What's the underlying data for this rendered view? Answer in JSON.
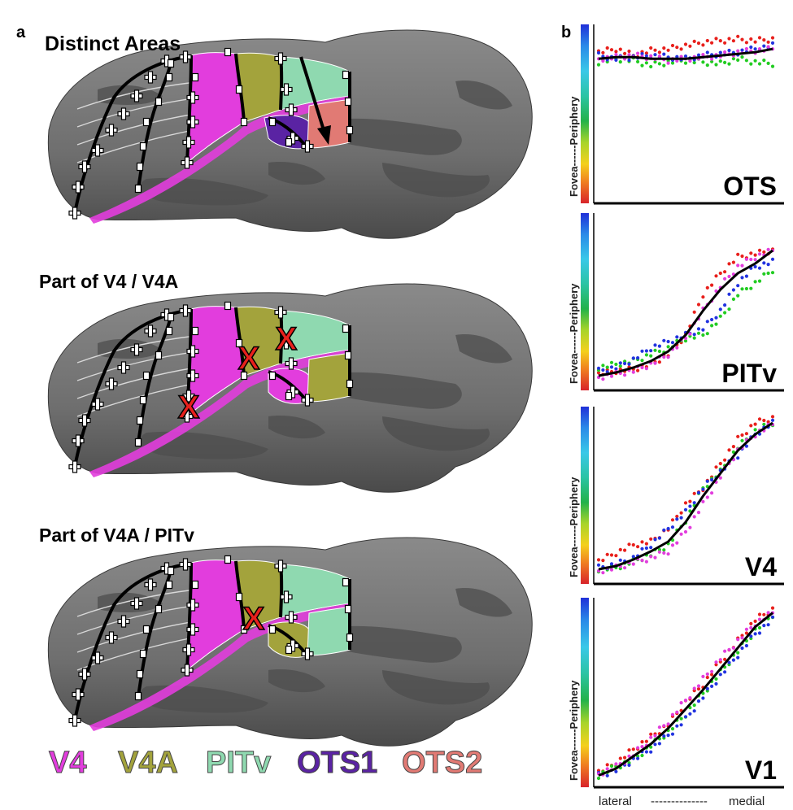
{
  "panel_a": {
    "letter": "a",
    "rows": [
      {
        "title": "Distinct Areas"
      },
      {
        "title": "Part of  V4 / V4A"
      },
      {
        "title": "Part of  V4A / PITv"
      }
    ],
    "x_mark": "X"
  },
  "legend": [
    {
      "label": "V4",
      "color": "#e23ddd"
    },
    {
      "label": "V4A",
      "color": "#a3a33c"
    },
    {
      "label": "PITv",
      "color": "#8fd9b0"
    },
    {
      "label": "OTS1",
      "color": "#5a23a3"
    },
    {
      "label": "OTS2",
      "color": "#e17a74"
    }
  ],
  "panel_b": {
    "letter": "b",
    "y_label": "Fovea------Periphery",
    "x_label_left": "lateral",
    "x_label_dashes": "--------------",
    "x_label_right": "medial",
    "colors": {
      "red": "#e8201c",
      "green": "#22cc22",
      "blue": "#2233e0",
      "magenta": "#e23ddd",
      "black": "#000000"
    }
  },
  "chart_data": [
    {
      "type": "scatter",
      "title": "OTS",
      "x": [
        0,
        0.1,
        0.2,
        0.3,
        0.4,
        0.5,
        0.6,
        0.7,
        0.8,
        0.9,
        1
      ],
      "series": [
        {
          "color": "red",
          "values": [
            0.88,
            0.9,
            0.86,
            0.89,
            0.9,
            0.92,
            0.94,
            0.95,
            0.96,
            0.95,
            0.96
          ]
        },
        {
          "color": "green",
          "values": [
            0.82,
            0.84,
            0.83,
            0.8,
            0.82,
            0.83,
            0.82,
            0.81,
            0.84,
            0.82,
            0.81
          ]
        },
        {
          "color": "blue",
          "values": [
            0.86,
            0.84,
            0.85,
            0.86,
            0.85,
            0.84,
            0.86,
            0.87,
            0.88,
            0.9,
            0.92
          ]
        },
        {
          "color": "magenta",
          "values": [
            0.84,
            0.85,
            0.86,
            0.85,
            0.83,
            0.84,
            0.85,
            0.86,
            0.88,
            0.89,
            0.9
          ]
        },
        {
          "color": "black",
          "values": [
            0.84,
            0.85,
            0.85,
            0.84,
            0.84,
            0.84,
            0.85,
            0.86,
            0.87,
            0.88,
            0.9
          ]
        }
      ]
    },
    {
      "type": "scatter",
      "title": "PITv",
      "x": [
        0,
        0.1,
        0.2,
        0.3,
        0.4,
        0.5,
        0.6,
        0.7,
        0.8,
        0.9,
        1
      ],
      "series": [
        {
          "color": "red",
          "values": [
            0.06,
            0.08,
            0.09,
            0.12,
            0.18,
            0.3,
            0.55,
            0.68,
            0.78,
            0.8,
            0.82
          ]
        },
        {
          "color": "green",
          "values": [
            0.1,
            0.12,
            0.14,
            0.18,
            0.22,
            0.28,
            0.3,
            0.4,
            0.55,
            0.62,
            0.7
          ]
        },
        {
          "color": "blue",
          "values": [
            0.08,
            0.1,
            0.15,
            0.22,
            0.26,
            0.3,
            0.34,
            0.45,
            0.62,
            0.72,
            0.75
          ]
        },
        {
          "color": "magenta",
          "values": [
            0.04,
            0.06,
            0.08,
            0.12,
            0.18,
            0.28,
            0.45,
            0.6,
            0.72,
            0.78,
            0.82
          ]
        },
        {
          "color": "black",
          "values": [
            0.05,
            0.07,
            0.1,
            0.14,
            0.2,
            0.3,
            0.45,
            0.58,
            0.68,
            0.74,
            0.82
          ]
        }
      ]
    },
    {
      "type": "scatter",
      "title": "V4",
      "x": [
        0,
        0.1,
        0.2,
        0.3,
        0.4,
        0.5,
        0.6,
        0.7,
        0.8,
        0.9,
        1
      ],
      "series": [
        {
          "color": "red",
          "values": [
            0.1,
            0.15,
            0.2,
            0.22,
            0.3,
            0.45,
            0.55,
            0.7,
            0.85,
            0.95,
            0.98
          ]
        },
        {
          "color": "green",
          "values": [
            0.05,
            0.06,
            0.1,
            0.14,
            0.2,
            0.35,
            0.55,
            0.65,
            0.8,
            0.9,
            0.95
          ]
        },
        {
          "color": "blue",
          "values": [
            0.06,
            0.08,
            0.12,
            0.2,
            0.3,
            0.4,
            0.55,
            0.65,
            0.75,
            0.88,
            0.95
          ]
        },
        {
          "color": "magenta",
          "values": [
            0.04,
            0.06,
            0.09,
            0.12,
            0.16,
            0.28,
            0.45,
            0.62,
            0.78,
            0.88,
            0.94
          ]
        },
        {
          "color": "black",
          "values": [
            0.05,
            0.07,
            0.11,
            0.16,
            0.22,
            0.34,
            0.5,
            0.64,
            0.78,
            0.88,
            0.95
          ]
        }
      ]
    },
    {
      "type": "scatter",
      "title": "V1",
      "x": [
        0,
        0.1,
        0.2,
        0.3,
        0.4,
        0.5,
        0.6,
        0.7,
        0.8,
        0.9,
        1
      ],
      "series": [
        {
          "color": "red",
          "values": [
            0.05,
            0.1,
            0.18,
            0.25,
            0.32,
            0.45,
            0.55,
            0.68,
            0.8,
            0.92,
            0.98
          ]
        },
        {
          "color": "green",
          "values": [
            0.03,
            0.08,
            0.12,
            0.2,
            0.28,
            0.38,
            0.5,
            0.62,
            0.74,
            0.86,
            0.95
          ]
        },
        {
          "color": "blue",
          "values": [
            0.03,
            0.06,
            0.12,
            0.18,
            0.26,
            0.35,
            0.48,
            0.6,
            0.72,
            0.84,
            0.92
          ]
        },
        {
          "color": "magenta",
          "values": [
            0.04,
            0.08,
            0.15,
            0.24,
            0.34,
            0.46,
            0.58,
            0.7,
            0.8,
            0.9,
            0.96
          ]
        },
        {
          "color": "black",
          "values": [
            0.03,
            0.07,
            0.14,
            0.21,
            0.3,
            0.41,
            0.52,
            0.64,
            0.76,
            0.88,
            0.96
          ]
        }
      ]
    }
  ]
}
